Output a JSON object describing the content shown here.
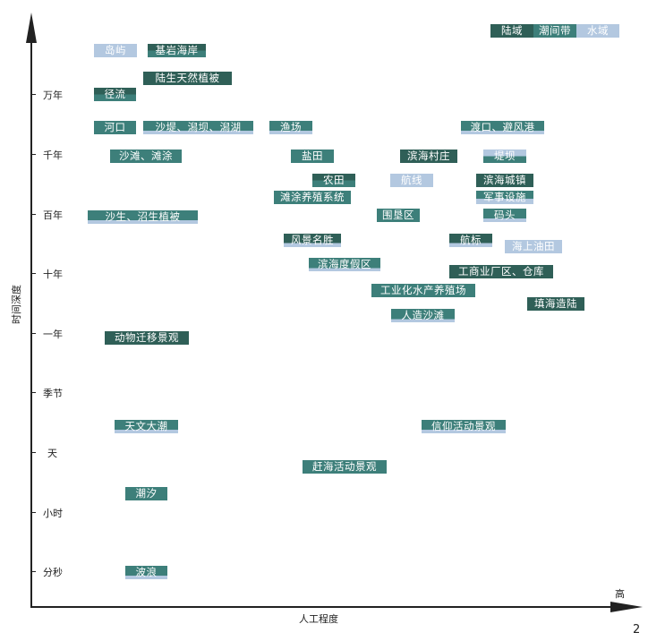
{
  "axes": {
    "y_label": "时间深度",
    "x_label": "人工程度",
    "x_end_label": "高",
    "y_ticks": [
      "万年",
      "千年",
      "百年",
      "十年",
      "一年",
      "季节",
      "天",
      "小时",
      "分秒"
    ]
  },
  "page_number": "2",
  "colors": {
    "dark": "#2f5f57",
    "teal": "#3d7f7a",
    "light": "#b3c8e0"
  },
  "legend": [
    {
      "label": "陆域",
      "color": "dark"
    },
    {
      "label": "潮间带",
      "color": "teal"
    },
    {
      "label": "水域",
      "color": "light"
    }
  ],
  "items": [
    {
      "label": "岛屿",
      "color": "light"
    },
    {
      "label": "基岩海岸",
      "color": "dark/teal"
    },
    {
      "label": "陆生天然植被",
      "color": "dark"
    },
    {
      "label": "径流",
      "color": "dark/teal"
    },
    {
      "label": "河口",
      "color": "teal"
    },
    {
      "label": "沙堤、潟坝、潟湖",
      "color": "teal/light"
    },
    {
      "label": "渔场",
      "color": "teal/light"
    },
    {
      "label": "渡口、避风港",
      "color": "teal/light"
    },
    {
      "label": "沙滩、滩涂",
      "color": "teal"
    },
    {
      "label": "盐田",
      "color": "teal"
    },
    {
      "label": "滨海村庄",
      "color": "dark"
    },
    {
      "label": "堤坝",
      "color": "light/teal"
    },
    {
      "label": "农田",
      "color": "dark/teal"
    },
    {
      "label": "航线",
      "color": "light"
    },
    {
      "label": "滨海城镇",
      "color": "dark"
    },
    {
      "label": "滩涂养殖系统",
      "color": "teal"
    },
    {
      "label": "军事设施",
      "color": "teal/light"
    },
    {
      "label": "沙生、沼生植被",
      "color": "teal/light"
    },
    {
      "label": "围垦区",
      "color": "teal"
    },
    {
      "label": "码头",
      "color": "teal/light"
    },
    {
      "label": "风景名胜",
      "color": "dark/light"
    },
    {
      "label": "航标",
      "color": "dark/light"
    },
    {
      "label": "海上油田",
      "color": "light"
    },
    {
      "label": "滨海度假区",
      "color": "teal/light"
    },
    {
      "label": "工商业厂区、仓库",
      "color": "dark"
    },
    {
      "label": "工业化水产养殖场",
      "color": "teal"
    },
    {
      "label": "填海造陆",
      "color": "dark"
    },
    {
      "label": "人造沙滩",
      "color": "teal/light"
    },
    {
      "label": "动物迁移景观",
      "color": "dark"
    },
    {
      "label": "天文大潮",
      "color": "teal/light"
    },
    {
      "label": "信仰活动景观",
      "color": "teal/light"
    },
    {
      "label": "赶海活动景观",
      "color": "teal"
    },
    {
      "label": "潮汐",
      "color": "teal"
    },
    {
      "label": "波浪",
      "color": "teal/light"
    }
  ]
}
